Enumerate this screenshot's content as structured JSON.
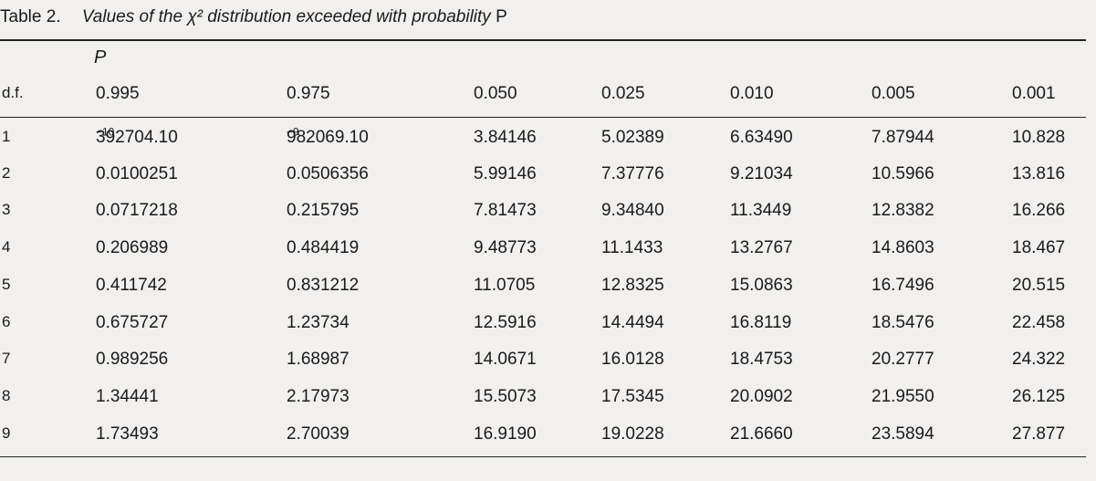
{
  "caption": {
    "number": "Table 2.",
    "title": "Values of the χ² distribution exceeded with probability",
    "title_symbol": "P"
  },
  "header": {
    "p_label": "P",
    "df_label": "d.f.",
    "probabilities": [
      "0.995",
      "0.975",
      "0.050",
      "0.025",
      "0.010",
      "0.005",
      "0.001"
    ]
  },
  "rows": [
    {
      "df": "1",
      "values": [
        "392704.10",
        "982069.10",
        "3.84146",
        "5.02389",
        "6.63490",
        "7.87944",
        "10.828"
      ],
      "exp": [
        "−10",
        "−9"
      ]
    },
    {
      "df": "2",
      "values": [
        "0.0100251",
        "0.0506356",
        "5.99146",
        "7.37776",
        "9.21034",
        "10.5966",
        "13.816"
      ]
    },
    {
      "df": "3",
      "values": [
        "0.0717218",
        "0.215795",
        "7.81473",
        "9.34840",
        "11.3449",
        "12.8382",
        "16.266"
      ]
    },
    {
      "df": "4",
      "values": [
        "0.206989",
        "0.484419",
        "9.48773",
        "11.1433",
        "13.2767",
        "14.8603",
        "18.467"
      ]
    },
    {
      "df": "5",
      "values": [
        "0.411742",
        "0.831212",
        "11.0705",
        "12.8325",
        "15.0863",
        "16.7496",
        "20.515"
      ]
    },
    {
      "df": "6",
      "values": [
        "0.675727",
        "1.23734",
        "12.5916",
        "14.4494",
        "16.8119",
        "18.5476",
        "22.458"
      ]
    },
    {
      "df": "7",
      "values": [
        "0.989256",
        "1.68987",
        "14.0671",
        "16.0128",
        "18.4753",
        "20.2777",
        "24.322"
      ]
    },
    {
      "df": "8",
      "values": [
        "1.34441",
        "2.17973",
        "15.5073",
        "17.5345",
        "20.0902",
        "21.9550",
        "26.125"
      ]
    },
    {
      "df": "9",
      "values": [
        "1.73493",
        "2.70039",
        "16.9190",
        "19.0228",
        "21.6660",
        "23.5894",
        "27.877"
      ]
    }
  ]
}
